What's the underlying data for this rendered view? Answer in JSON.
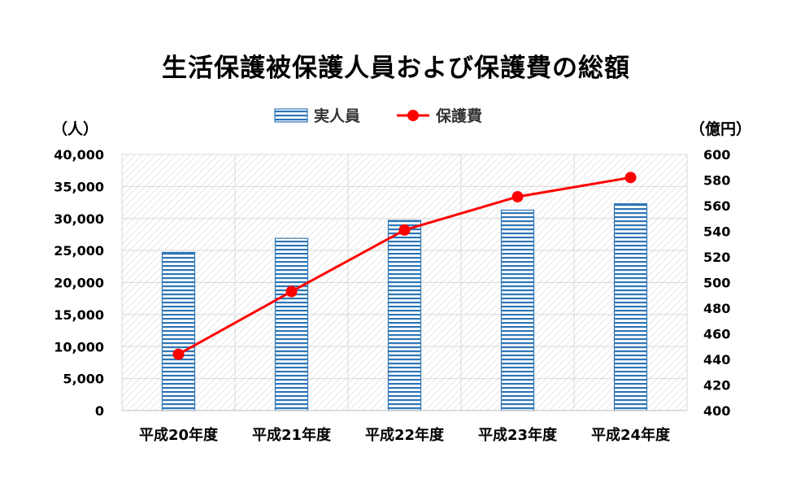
{
  "chart_data": {
    "type": "bar",
    "title": "生活保護被保護人員および保護費の総額",
    "left_unit": "（人）",
    "right_unit": "（億円）",
    "categories": [
      "平成20年度",
      "平成21年度",
      "平成22年度",
      "平成23年度",
      "平成24年度"
    ],
    "series": [
      {
        "name": "実人員",
        "type": "bar",
        "axis": "left",
        "values": [
          24700,
          26900,
          29700,
          31300,
          32300
        ]
      },
      {
        "name": "保護費",
        "type": "line",
        "axis": "right",
        "values": [
          444,
          493,
          541,
          567,
          582
        ]
      }
    ],
    "y_left": {
      "min": 0,
      "max": 40000,
      "step": 5000,
      "tick_labels": [
        "0",
        "5,000",
        "10,000",
        "15,000",
        "20,000",
        "25,000",
        "30,000",
        "35,000",
        "40,000"
      ]
    },
    "y_right": {
      "min": 400,
      "max": 600,
      "step": 20,
      "tick_labels": [
        "400",
        "420",
        "440",
        "460",
        "480",
        "500",
        "520",
        "540",
        "560",
        "580",
        "600"
      ]
    },
    "legend_position": "top-center",
    "grid": true,
    "colors": {
      "bar_stripe": "#2e75b6",
      "line": "#ff0000",
      "grid": "#d9d9d9"
    }
  }
}
